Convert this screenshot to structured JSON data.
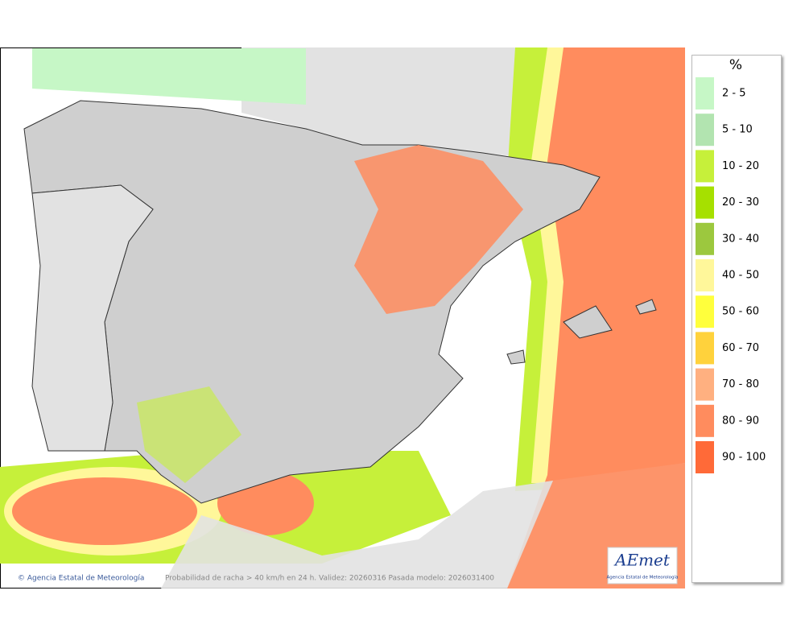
{
  "legend": {
    "title": "%",
    "items": [
      {
        "label": "2 - 5",
        "color": "#c6f7c6"
      },
      {
        "label": "5 - 10",
        "color": "#b2e4b0"
      },
      {
        "label": "10 - 20",
        "color": "#c6f03a"
      },
      {
        "label": "20 - 30",
        "color": "#a6e000"
      },
      {
        "label": "30 - 40",
        "color": "#9cc83e"
      },
      {
        "label": "40 - 50",
        "color": "#fff79a"
      },
      {
        "label": "50 - 60",
        "color": "#ffff3c"
      },
      {
        "label": "60 - 70",
        "color": "#ffd23c"
      },
      {
        "label": "70 - 80",
        "color": "#ffb080"
      },
      {
        "label": "80 - 90",
        "color": "#ff8c5e"
      },
      {
        "label": "90 - 100",
        "color": "#ff6a38"
      }
    ]
  },
  "footer": {
    "copyright": "© Agencia Estatal de Meteorología",
    "caption": "Probabilidad de racha > 40 km/h en 24 h. Validez: 20260316 Pasada modelo: 2026031400"
  },
  "logo": {
    "name": "AEmet",
    "subtitle": "Agencia Estatal de Meteorología"
  }
}
